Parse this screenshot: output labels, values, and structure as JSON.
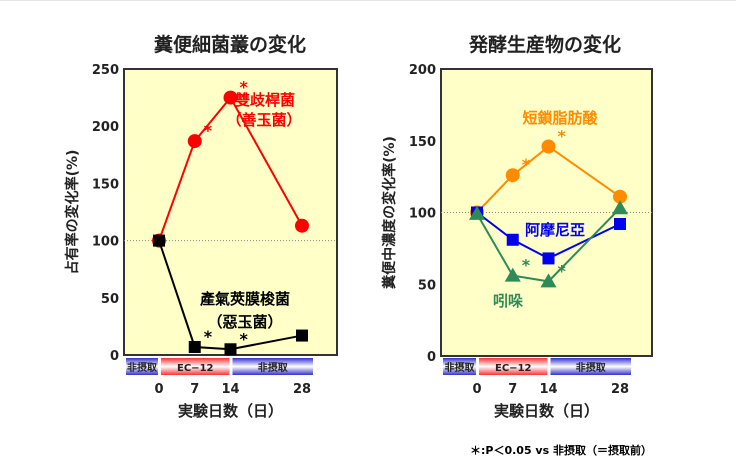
{
  "footnote": "＊:P＜0.05 vs 非摂取（＝摂取前）",
  "chart_data": [
    {
      "type": "line",
      "title": "糞便細菌叢の変化",
      "ylabel": "占有率の変化率(%)",
      "xlabel": "実験日数（日）",
      "ylim": [
        0,
        250
      ],
      "yticks": [
        0,
        50,
        100,
        150,
        200,
        250
      ],
      "x": [
        0,
        7,
        14,
        28
      ],
      "xticks": [
        "0",
        "7",
        "14",
        "28"
      ],
      "reference_line": 100,
      "periods": [
        {
          "label": "非摂取",
          "color": "#3333cc"
        },
        {
          "label": "EC−12",
          "color": "#ff3333"
        },
        {
          "label": "非摂取",
          "color": "#3333cc"
        }
      ],
      "series": [
        {
          "name": "雙歧桿菌",
          "sub": "（善玉菌）",
          "color": "#ff0000",
          "marker": "circle",
          "values": [
            100,
            187,
            225,
            113
          ],
          "significant": [
            false,
            true,
            true,
            false
          ]
        },
        {
          "name": "產氣莢膜梭菌",
          "sub": "（惡玉菌）",
          "color": "#000000",
          "marker": "square",
          "values": [
            100,
            7,
            5,
            17
          ],
          "significant": [
            false,
            true,
            true,
            false
          ]
        }
      ]
    },
    {
      "type": "line",
      "title": "発酵生産物の変化",
      "ylabel": "糞便中濃度の変化率(%)",
      "xlabel": "実験日数（日）",
      "ylim": [
        0,
        200
      ],
      "yticks": [
        0,
        50,
        100,
        150,
        200
      ],
      "x": [
        0,
        7,
        14,
        28
      ],
      "xticks": [
        "0",
        "7",
        "14",
        "28"
      ],
      "reference_line": 100,
      "periods": [
        {
          "label": "非摂取",
          "color": "#3333cc"
        },
        {
          "label": "EC−12",
          "color": "#ff3333"
        },
        {
          "label": "非摂取",
          "color": "#3333cc"
        }
      ],
      "series": [
        {
          "name": "短鎖脂肪酸",
          "color": "#ff8c00",
          "marker": "circle",
          "values": [
            100,
            126,
            146,
            111
          ],
          "significant": [
            false,
            true,
            true,
            false
          ]
        },
        {
          "name": "阿摩尼亞",
          "color": "#0000ee",
          "marker": "square",
          "values": [
            100,
            81,
            68,
            92
          ],
          "significant": [
            false,
            false,
            false,
            false
          ]
        },
        {
          "name": "吲哚",
          "color": "#2e8b57",
          "marker": "triangle",
          "values": [
            99,
            56,
            52,
            103
          ],
          "significant": [
            false,
            true,
            true,
            false
          ]
        }
      ]
    }
  ]
}
